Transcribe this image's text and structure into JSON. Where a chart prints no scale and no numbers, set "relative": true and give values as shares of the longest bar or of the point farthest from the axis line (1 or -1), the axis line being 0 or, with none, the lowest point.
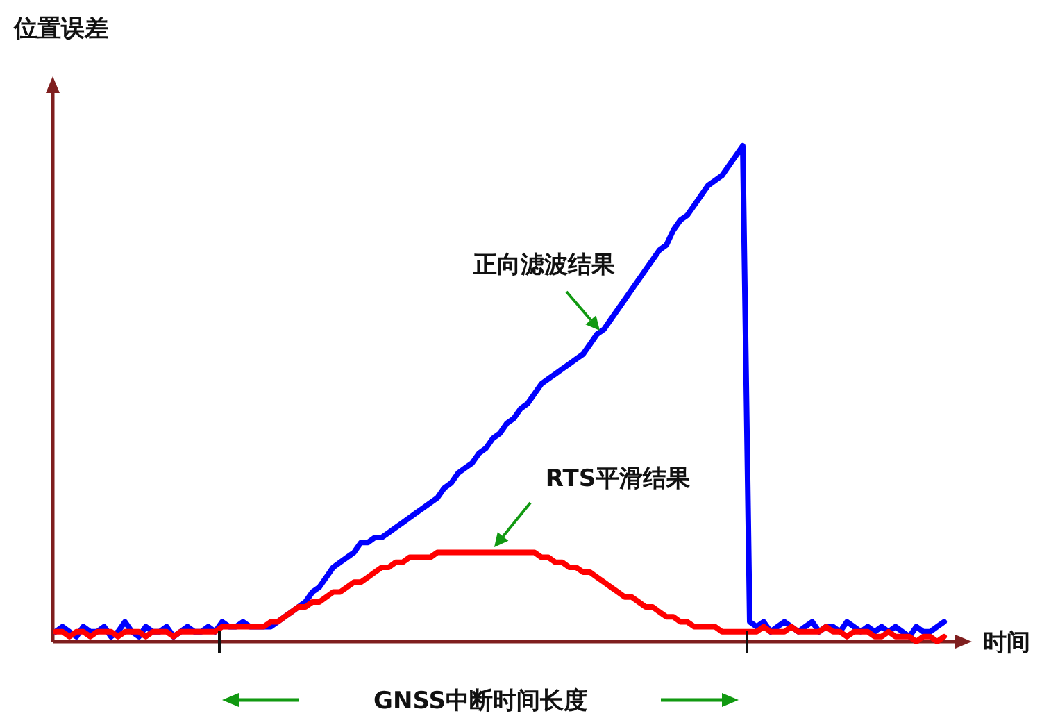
{
  "chart_data": {
    "type": "line",
    "relative": true,
    "ylabel": "位置误差",
    "xlabel": "时间",
    "legend": false,
    "annotations": [
      "GNSS中断时间长度"
    ],
    "categories": [
      null,
      null,
      null,
      null,
      null,
      null,
      null,
      null,
      null,
      null,
      null,
      null,
      null,
      null,
      null,
      null,
      null,
      null,
      null,
      null,
      null,
      null,
      null,
      null,
      null,
      null,
      null,
      null,
      null,
      null,
      null,
      null,
      null,
      null,
      null,
      null,
      null,
      null,
      null,
      null,
      null,
      null,
      null,
      null,
      null,
      null,
      null,
      null,
      null,
      null,
      null,
      null,
      null,
      null,
      null,
      null,
      null,
      null,
      null,
      null,
      null,
      null,
      null,
      null,
      null,
      null,
      null,
      null,
      null,
      null,
      null,
      null,
      null,
      null,
      null,
      null,
      null,
      null,
      null,
      null,
      null,
      null,
      null,
      null,
      null,
      null,
      null,
      null,
      null,
      null,
      null,
      null,
      null,
      null,
      null,
      null,
      null,
      null,
      null,
      null,
      null,
      null,
      null,
      null,
      null,
      null,
      null,
      null,
      null,
      null,
      null,
      null,
      null,
      null,
      null,
      null,
      null,
      null,
      null,
      null,
      null,
      null,
      null,
      null,
      null,
      null,
      null,
      null,
      null
    ],
    "series": [
      {
        "name": "正向滤波结果",
        "color": "#0000ff",
        "values": [
          0.02,
          0.03,
          0.02,
          0.01,
          0.03,
          0.02,
          0.02,
          0.03,
          0.01,
          0.02,
          0.04,
          0.02,
          0.01,
          0.03,
          0.02,
          0.02,
          0.03,
          0.01,
          0.02,
          0.03,
          0.02,
          0.02,
          0.03,
          0.02,
          0.04,
          0.03,
          0.03,
          0.04,
          0.03,
          0.03,
          0.03,
          0.03,
          0.04,
          0.05,
          0.06,
          0.07,
          0.08,
          0.1,
          0.11,
          0.13,
          0.15,
          0.16,
          0.17,
          0.18,
          0.2,
          0.2,
          0.21,
          0.21,
          0.22,
          0.23,
          0.24,
          0.25,
          0.26,
          0.27,
          0.28,
          0.29,
          0.31,
          0.32,
          0.34,
          0.35,
          0.36,
          0.38,
          0.39,
          0.41,
          0.42,
          0.44,
          0.45,
          0.47,
          0.48,
          0.5,
          0.52,
          0.53,
          0.54,
          0.55,
          0.56,
          0.57,
          0.58,
          0.6,
          0.62,
          0.63,
          0.65,
          0.67,
          0.69,
          0.71,
          0.73,
          0.75,
          0.77,
          0.79,
          0.8,
          0.83,
          0.85,
          0.86,
          0.88,
          0.9,
          0.92,
          0.93,
          0.94,
          0.96,
          0.98,
          1.0,
          0.04,
          0.03,
          0.04,
          0.02,
          0.03,
          0.04,
          0.03,
          0.02,
          0.03,
          0.04,
          0.02,
          0.03,
          0.03,
          0.02,
          0.04,
          0.03,
          0.02,
          0.03,
          0.02,
          0.03,
          0.02,
          0.03,
          0.02,
          0.01,
          0.03,
          0.02,
          0.02,
          0.03,
          0.04
        ]
      },
      {
        "name": "RTS平滑结果",
        "color": "#ff0000",
        "values": [
          0.02,
          0.02,
          0.01,
          0.02,
          0.02,
          0.01,
          0.02,
          0.02,
          0.02,
          0.01,
          0.02,
          0.02,
          0.02,
          0.01,
          0.02,
          0.02,
          0.02,
          0.01,
          0.02,
          0.02,
          0.02,
          0.02,
          0.02,
          0.02,
          0.03,
          0.03,
          0.03,
          0.03,
          0.03,
          0.03,
          0.03,
          0.04,
          0.04,
          0.05,
          0.06,
          0.07,
          0.07,
          0.08,
          0.08,
          0.09,
          0.1,
          0.1,
          0.11,
          0.12,
          0.12,
          0.13,
          0.14,
          0.15,
          0.15,
          0.16,
          0.16,
          0.17,
          0.17,
          0.17,
          0.17,
          0.18,
          0.18,
          0.18,
          0.18,
          0.18,
          0.18,
          0.18,
          0.18,
          0.18,
          0.18,
          0.18,
          0.18,
          0.18,
          0.18,
          0.18,
          0.17,
          0.17,
          0.16,
          0.16,
          0.15,
          0.15,
          0.14,
          0.14,
          0.13,
          0.12,
          0.11,
          0.1,
          0.09,
          0.09,
          0.08,
          0.07,
          0.07,
          0.06,
          0.05,
          0.05,
          0.04,
          0.04,
          0.03,
          0.03,
          0.03,
          0.03,
          0.02,
          0.02,
          0.02,
          0.02,
          0.02,
          0.02,
          0.03,
          0.02,
          0.02,
          0.02,
          0.03,
          0.02,
          0.02,
          0.02,
          0.02,
          0.03,
          0.02,
          0.02,
          0.01,
          0.02,
          0.02,
          0.02,
          0.01,
          0.01,
          0.02,
          0.01,
          0.01,
          0.01,
          0.0,
          0.01,
          0.01,
          0.0,
          0.01
        ]
      }
    ]
  }
}
